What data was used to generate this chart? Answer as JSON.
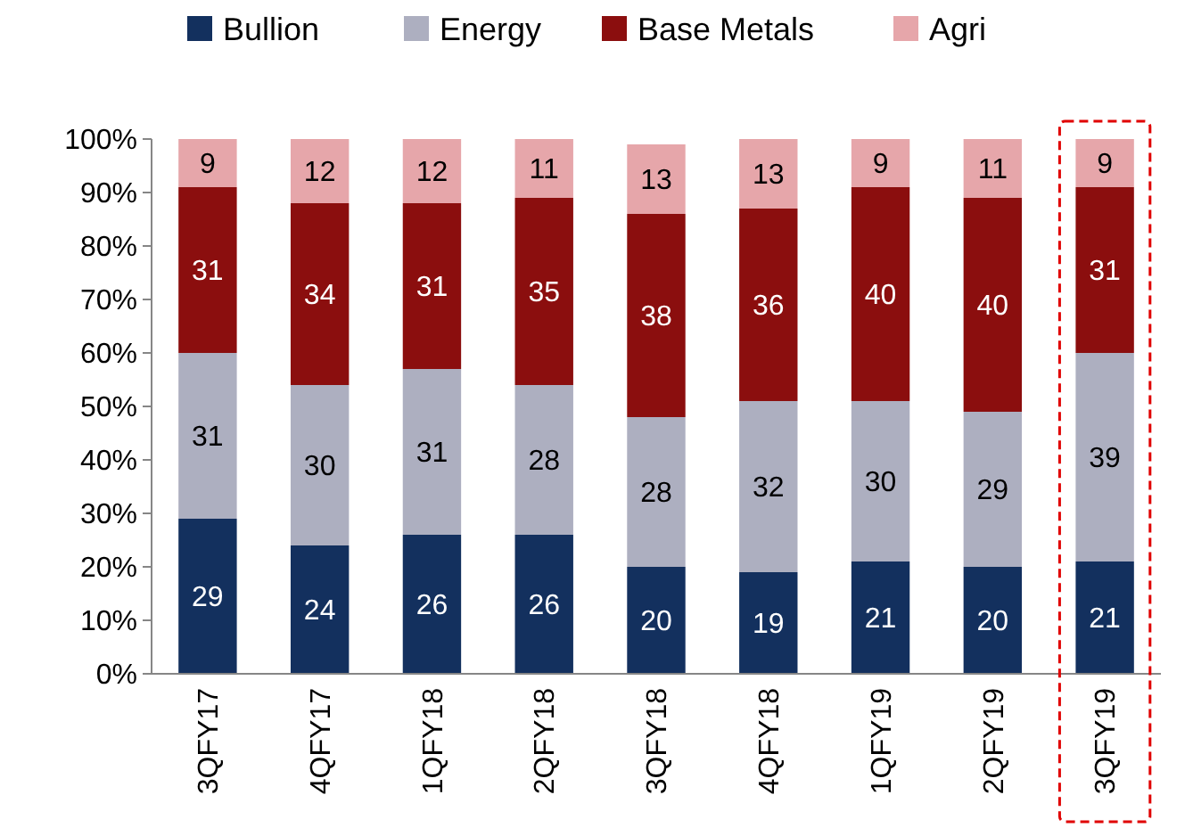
{
  "chart_data": {
    "type": "bar",
    "stacked": true,
    "categories": [
      "3QFY17",
      "4QFY17",
      "1QFY18",
      "2QFY18",
      "3QFY18",
      "4QFY18",
      "1QFY19",
      "2QFY19",
      "3QFY19"
    ],
    "series": [
      {
        "name": "Bullion",
        "color": "#13305e",
        "values": [
          29,
          24,
          26,
          26,
          20,
          19,
          21,
          20,
          21
        ]
      },
      {
        "name": "Energy",
        "color": "#adafc0",
        "values": [
          31,
          30,
          31,
          28,
          28,
          32,
          30,
          29,
          39
        ]
      },
      {
        "name": "Base Metals",
        "color": "#8b0e0e",
        "values": [
          31,
          34,
          31,
          35,
          38,
          36,
          40,
          40,
          31
        ]
      },
      {
        "name": "Agri",
        "color": "#e6a6aa",
        "values": [
          9,
          12,
          12,
          11,
          13,
          13,
          9,
          11,
          9
        ]
      }
    ],
    "ylim": [
      0,
      100
    ],
    "yticks": [
      {
        "value": 0,
        "label": "0%"
      },
      {
        "value": 10,
        "label": "10%"
      },
      {
        "value": 20,
        "label": "20%"
      },
      {
        "value": 30,
        "label": "30%"
      },
      {
        "value": 40,
        "label": "40%"
      },
      {
        "value": 50,
        "label": "50%"
      },
      {
        "value": 60,
        "label": "60%"
      },
      {
        "value": 70,
        "label": "70%"
      },
      {
        "value": 80,
        "label": "80%"
      },
      {
        "value": 90,
        "label": "90%"
      },
      {
        "value": 100,
        "label": "100%"
      }
    ],
    "data_labels": true,
    "legend": "top",
    "grid": false
  }
}
